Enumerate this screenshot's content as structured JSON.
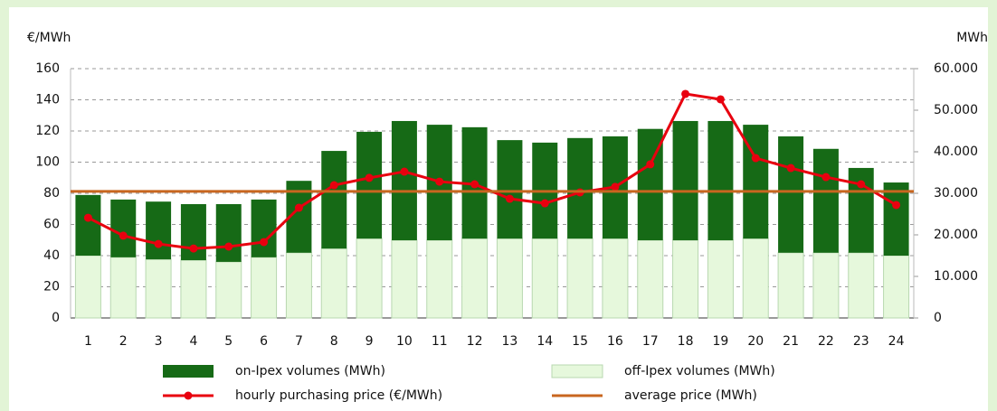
{
  "chart_data": {
    "type": "bar-line",
    "y_label": "€/MWh",
    "y2_label": "MWh",
    "categories": [
      "1",
      "2",
      "3",
      "4",
      "5",
      "6",
      "7",
      "8",
      "9",
      "10",
      "11",
      "12",
      "13",
      "14",
      "15",
      "16",
      "17",
      "18",
      "19",
      "20",
      "21",
      "22",
      "23",
      "24"
    ],
    "ylim": [
      0,
      160
    ],
    "yticks": [
      0,
      20,
      40,
      60,
      80,
      100,
      120,
      140,
      160
    ],
    "y2lim": [
      0,
      60000
    ],
    "y2ticks": [
      0,
      {
        "value": 10000,
        "label": "10.000"
      },
      {
        "value": 20000,
        "label": "20.000"
      },
      {
        "value": 30000,
        "label": "30.000"
      },
      {
        "value": 40000,
        "label": "40.000"
      },
      {
        "value": 50000,
        "label": "50.000"
      },
      {
        "value": 60000,
        "label": "60.000"
      }
    ],
    "grid": true,
    "series": [
      {
        "name": "off-Ipex volumes (MWh)",
        "type": "bar",
        "axis": "y2",
        "color": "#e6f8dc",
        "values": [
          15000,
          14600,
          14100,
          13900,
          13500,
          14600,
          15700,
          16700,
          19100,
          18700,
          18700,
          19100,
          19100,
          19100,
          19100,
          19100,
          18700,
          18700,
          18700,
          19100,
          15700,
          15700,
          15700,
          15000
        ]
      },
      {
        "name": "on-Ipex volumes (MWh)",
        "type": "bar",
        "axis": "y2",
        "color": "#166a16",
        "values": [
          14600,
          13900,
          13900,
          13500,
          13900,
          13900,
          17300,
          23500,
          25700,
          28700,
          27800,
          26800,
          23700,
          23100,
          24200,
          24600,
          26800,
          28700,
          28700,
          27400,
          28000,
          25000,
          20400,
          17600
        ]
      },
      {
        "name": "hourly purchasing price (€/MWh)",
        "type": "line",
        "axis": "y",
        "color": "#e8000f",
        "values": [
          64.3,
          52.8,
          47.5,
          44.6,
          45.8,
          48.7,
          70.7,
          85.2,
          89.9,
          93.9,
          87.5,
          85.8,
          76.5,
          73.6,
          80.6,
          84.1,
          98.6,
          143.8,
          140.3,
          102.6,
          96.2,
          90.4,
          85.8,
          72.5
        ]
      },
      {
        "name": "average price (MWh)",
        "type": "hline",
        "axis": "y",
        "color": "#c8661f",
        "value": 81.2
      }
    ]
  }
}
